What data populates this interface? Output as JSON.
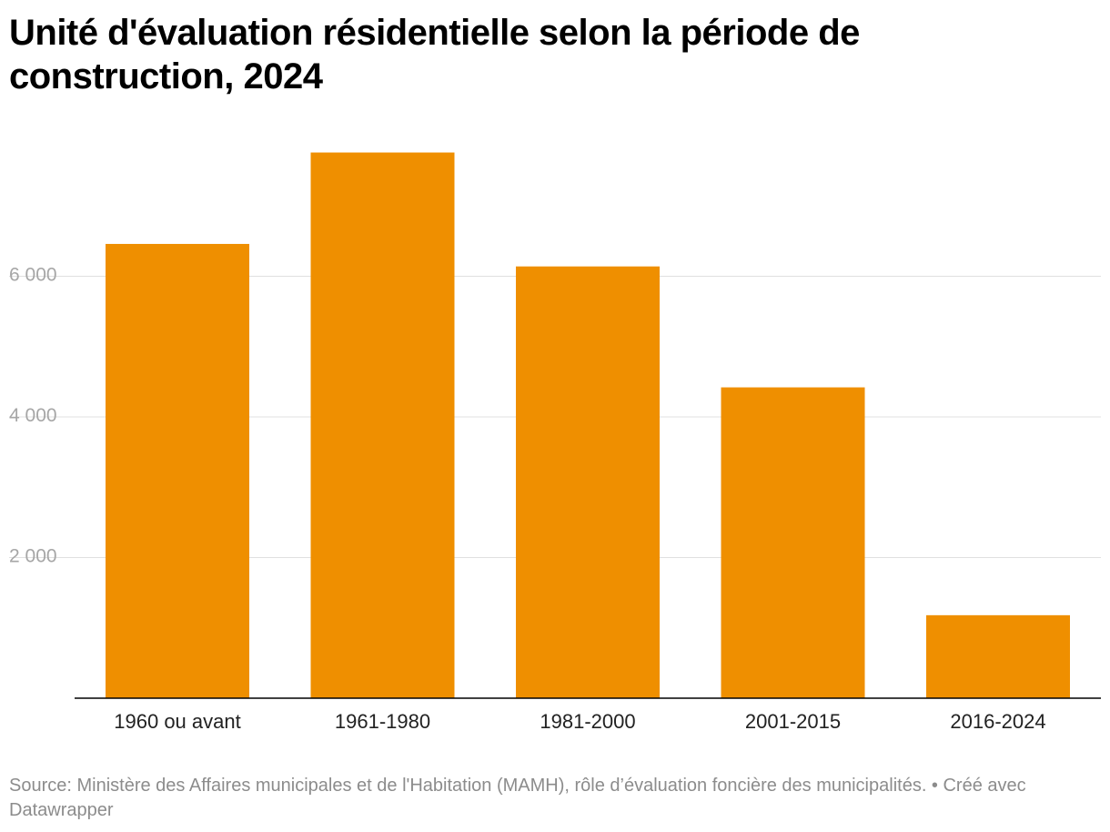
{
  "title": "Unité d'évaluation résidentielle selon la période de construction, 2024",
  "source": "Source: Ministère des Affaires municipales et de l'Habitation (MAMH), rôle d’évaluation foncière des municipalités. • Créé avec Datawrapper",
  "colors": {
    "bar": "#ef8f00",
    "grid": "#e0e0e0",
    "axis": "#000000",
    "tick_text": "#a6a6a6",
    "category_text": "#222222"
  },
  "chart_data": {
    "type": "bar",
    "title": "Unité d'évaluation résidentielle selon la période de construction, 2024",
    "xlabel": "",
    "ylabel": "",
    "categories": [
      "1960 ou avant",
      "1961-1980",
      "1981-2000",
      "2001-2015",
      "2016-2024"
    ],
    "values": [
      6460,
      7760,
      6140,
      4420,
      1180
    ],
    "ylim": [
      0,
      8000
    ],
    "yticks": [
      2000,
      4000,
      6000
    ],
    "ytick_labels": [
      "2 000",
      "4 000",
      "6 000"
    ],
    "grid": true,
    "legend": "none"
  }
}
